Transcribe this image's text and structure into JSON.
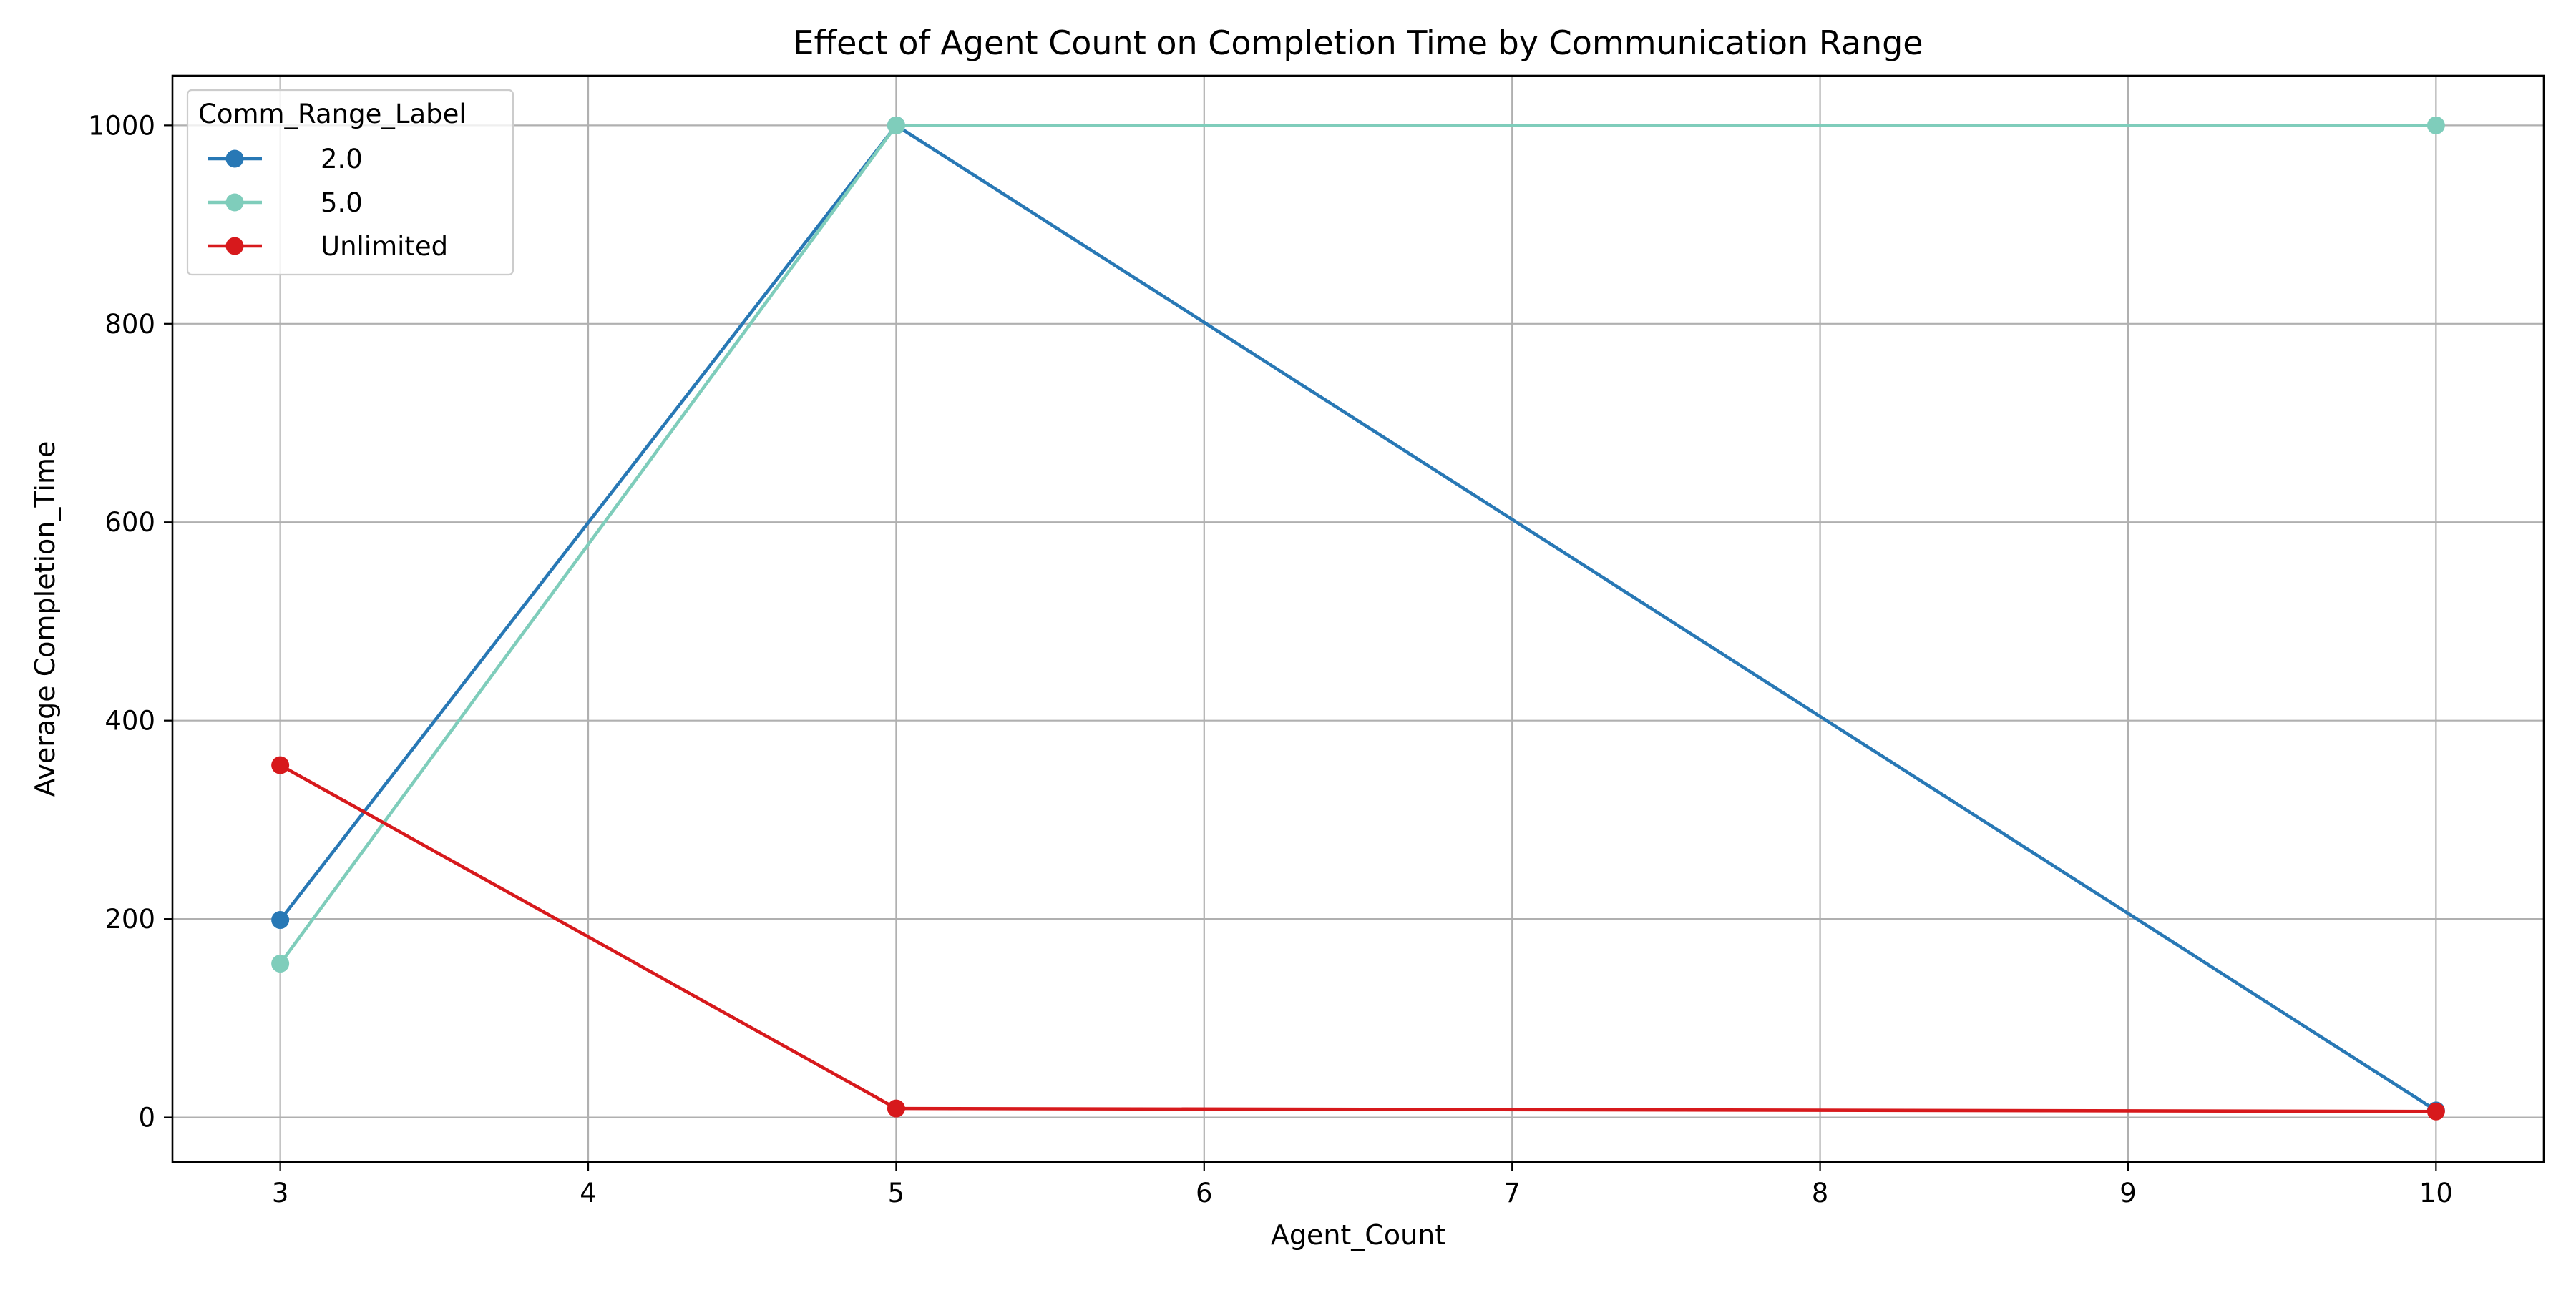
{
  "chart_data": {
    "type": "line",
    "title": "Effect of Agent Count on Completion Time by Communication Range",
    "xlabel": "Agent_Count",
    "ylabel": "Average Completion_Time",
    "x_ticks": [
      3,
      4,
      5,
      6,
      7,
      8,
      9,
      10
    ],
    "y_ticks": [
      0,
      200,
      400,
      600,
      800,
      1000
    ],
    "xlim": [
      2.65,
      10.35
    ],
    "ylim": [
      -45,
      1050
    ],
    "grid": true,
    "legend": {
      "title": "Comm_Range_Label",
      "placement": "top-left"
    },
    "x": [
      3,
      5,
      10
    ],
    "series": [
      {
        "name": "2.0",
        "color": "#2878b5",
        "values": [
          199,
          1000,
          7
        ]
      },
      {
        "name": "5.0",
        "color": "#7fcdbb",
        "values": [
          155,
          1000,
          1000
        ]
      },
      {
        "name": "Unlimited",
        "color": "#d7191c",
        "values": [
          355,
          9,
          6
        ]
      }
    ]
  }
}
